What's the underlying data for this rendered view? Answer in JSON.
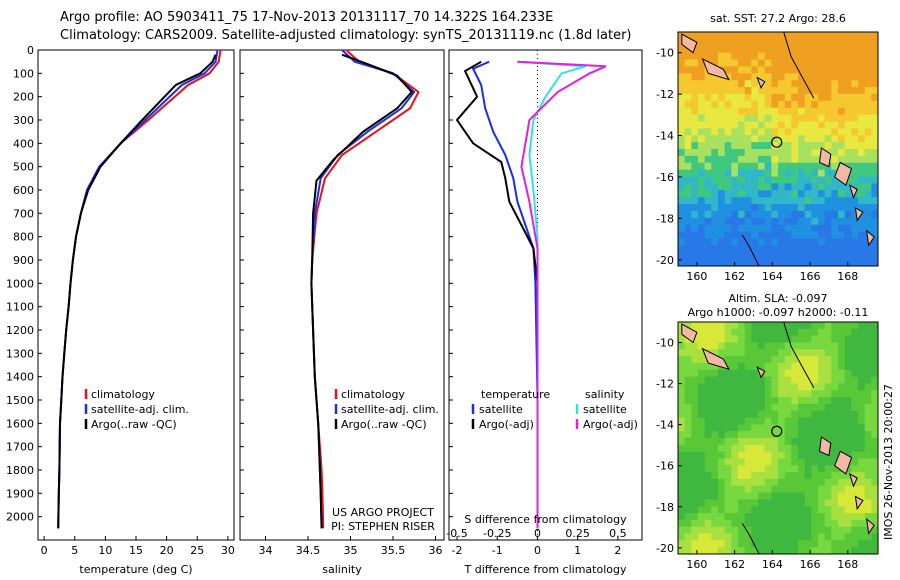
{
  "title_line1": "Argo profile: AO 5903411_75 17-Nov-2013 20131117_70 14.322S 164.233E",
  "title_line2": "Climatology: CARS2009. Satellite-adjusted climatology: synTS_20131119.nc (1.8d later)",
  "sst_title": "sat. SST: 27.2 Argo: 28.6",
  "sla_title1": "Altim. SLA: -0.097",
  "sla_title2": "Argo h1000: -0.097 h2000: -0.11",
  "credit_vertical": "IMOS 26-Nov-2013 20:00:27",
  "project_note1": "US ARGO PROJECT",
  "project_note2": "PI: STEPHEN RISER",
  "legend_profile": [
    "climatology",
    "satellite-adj. clim.",
    "Argo(..raw -QC)"
  ],
  "legend_diff_temp_title": "temperature",
  "legend_diff_sal_title": "salinity",
  "legend_diff_temp": [
    "satellite",
    "Argo(-adj)"
  ],
  "legend_diff_sal": [
    "satellite",
    "Argo(-adj)"
  ],
  "colors": {
    "climatology": "#e8101a",
    "satellite": "#1a2ee8",
    "argo": "#000000",
    "sat_sal": "#33e0e8",
    "argo_sal": "#e020e0",
    "land": "#f2b8a4"
  },
  "chart_data": [
    {
      "type": "line",
      "xlabel": "temperature (deg C)",
      "ylim": [
        2100,
        0
      ],
      "xlim": [
        -1,
        31
      ],
      "xticks": [
        0,
        5,
        10,
        15,
        20,
        25,
        30
      ],
      "yticks": [
        0,
        100,
        200,
        300,
        400,
        500,
        600,
        700,
        800,
        900,
        1000,
        1100,
        1200,
        1300,
        1400,
        1500,
        1600,
        1700,
        1800,
        1900,
        2000
      ],
      "series": [
        {
          "name": "climatology",
          "x": [
            28.8,
            28.5,
            27.0,
            23.5,
            17.0,
            12.5,
            9.0,
            7.0,
            6.0,
            5.2,
            4.7,
            4.3,
            4.0,
            3.6,
            3.3,
            3.0,
            2.8,
            2.6,
            2.5,
            2.4,
            2.3
          ],
          "y": [
            0,
            50,
            100,
            150,
            300,
            400,
            500,
            600,
            700,
            800,
            900,
            1000,
            1100,
            1200,
            1300,
            1400,
            1500,
            1600,
            1800,
            1900,
            2050
          ]
        },
        {
          "name": "satellite-adj. clim.",
          "x": [
            28.3,
            28.0,
            26.2,
            22.5,
            16.5,
            12.5,
            9.0,
            7.0,
            6.0,
            5.2,
            4.7,
            4.3,
            4.0,
            3.6,
            3.3,
            3.0,
            2.8,
            2.6,
            2.5,
            2.4,
            2.3
          ],
          "y": [
            0,
            50,
            100,
            150,
            300,
            400,
            500,
            600,
            700,
            800,
            900,
            1000,
            1100,
            1200,
            1300,
            1400,
            1500,
            1600,
            1800,
            1900,
            2050
          ]
        },
        {
          "name": "Argo(..raw -QC)",
          "x": [
            28.0,
            27.5,
            25.5,
            21.5,
            16.0,
            12.5,
            9.2,
            7.2,
            6.0,
            5.2,
            4.7,
            4.3,
            4.0,
            3.6,
            3.3,
            3.0,
            2.8,
            2.6,
            2.5,
            2.4,
            2.3
          ],
          "y": [
            20,
            50,
            100,
            150,
            300,
            400,
            500,
            600,
            700,
            800,
            900,
            1000,
            1100,
            1200,
            1300,
            1400,
            1500,
            1600,
            1800,
            1900,
            2050
          ]
        }
      ]
    },
    {
      "type": "line",
      "xlabel": "salinity",
      "ylim": [
        2100,
        0
      ],
      "xlim": [
        33.7,
        36.1
      ],
      "xticks": [
        34,
        34.5,
        35,
        35.5,
        36
      ],
      "series": [
        {
          "name": "climatology",
          "x": [
            34.95,
            35.1,
            35.5,
            35.8,
            35.7,
            35.3,
            34.9,
            34.7,
            34.6,
            34.55,
            34.54,
            34.56,
            34.58,
            34.6,
            34.62,
            34.64,
            34.66,
            34.67,
            34.68
          ],
          "y": [
            0,
            50,
            100,
            180,
            250,
            350,
            450,
            550,
            700,
            900,
            1000,
            1200,
            1400,
            1500,
            1600,
            1700,
            1800,
            1900,
            2050
          ]
        },
        {
          "name": "satellite-adj. clim.",
          "x": [
            34.9,
            35.05,
            35.5,
            35.75,
            35.6,
            35.2,
            34.85,
            34.65,
            34.58,
            34.55,
            34.54,
            34.56,
            34.58,
            34.6,
            34.62,
            34.63,
            34.64,
            34.65,
            34.66
          ],
          "y": [
            0,
            50,
            100,
            180,
            250,
            350,
            450,
            550,
            700,
            900,
            1000,
            1200,
            1400,
            1500,
            1600,
            1700,
            1800,
            1900,
            2050
          ]
        },
        {
          "name": "Argo(..raw -QC)",
          "x": [
            34.9,
            35.2,
            35.55,
            35.72,
            35.55,
            35.15,
            34.8,
            34.6,
            34.56,
            34.55,
            34.54,
            34.56,
            34.58,
            34.6,
            34.62,
            34.63,
            34.64,
            34.65,
            34.66
          ],
          "y": [
            20,
            60,
            110,
            180,
            250,
            350,
            470,
            560,
            700,
            900,
            1000,
            1200,
            1400,
            1500,
            1600,
            1700,
            1800,
            1900,
            2050
          ]
        }
      ]
    },
    {
      "type": "line",
      "xlabel": "T difference from climatology",
      "xlabel_top": "S difference from climatology",
      "ylim": [
        2100,
        0
      ],
      "xlim": [
        -2.2,
        2.6
      ],
      "xticks": [
        -2,
        -1,
        0,
        1,
        2
      ],
      "xticks_s": [
        -0.5,
        -0.25,
        0,
        0.25,
        0.5
      ],
      "series": [
        {
          "name": "temperature satellite",
          "x": [
            -1.2,
            -1.6,
            -1.4,
            -1.3,
            -1.1,
            -0.8,
            -0.6,
            -0.5,
            -0.3,
            -0.1,
            -0.05,
            0,
            0
          ],
          "y": [
            50,
            80,
            150,
            250,
            350,
            450,
            550,
            650,
            750,
            850,
            1000,
            1500,
            2050
          ]
        },
        {
          "name": "temperature Argo(-adj)",
          "x": [
            -1.4,
            -1.8,
            -1.5,
            -2.0,
            -1.6,
            -0.9,
            -0.8,
            -0.7,
            -0.4,
            -0.1,
            0,
            0,
            0
          ],
          "y": [
            50,
            90,
            200,
            300,
            400,
            480,
            550,
            650,
            750,
            850,
            1000,
            1500,
            2050
          ]
        },
        {
          "name": "salinity satellite",
          "x": [
            -0.5,
            1.2,
            0.6,
            0.2,
            -0.1,
            -0.2,
            -0.1,
            0,
            0,
            0
          ],
          "y": [
            50,
            70,
            100,
            200,
            300,
            450,
            600,
            800,
            1000,
            2050
          ]
        },
        {
          "name": "salinity Argo(-adj)",
          "x": [
            -0.5,
            1.7,
            1.3,
            0.5,
            -0.2,
            -0.4,
            -0.2,
            0,
            0,
            0
          ],
          "y": [
            50,
            70,
            100,
            180,
            300,
            500,
            650,
            850,
            1000,
            2050
          ]
        }
      ]
    },
    {
      "type": "heatmap",
      "title": "sat. SST: 27.2 Argo: 28.6",
      "xlim": [
        159,
        169.6
      ],
      "ylim": [
        -20.3,
        -9
      ],
      "xticks": [
        160,
        162,
        164,
        166,
        168
      ],
      "yticks": [
        -10,
        -12,
        -14,
        -16,
        -18,
        -20
      ],
      "marker": {
        "lon": 164.233,
        "lat": -14.322
      }
    },
    {
      "type": "heatmap",
      "title": "Altim. SLA: -0.097",
      "xlim": [
        159,
        169.6
      ],
      "ylim": [
        -20.3,
        -9
      ],
      "xticks": [
        160,
        162,
        164,
        166,
        168
      ],
      "yticks": [
        -10,
        -12,
        -14,
        -16,
        -18,
        -20
      ],
      "marker": {
        "lon": 164.233,
        "lat": -14.322
      }
    }
  ]
}
